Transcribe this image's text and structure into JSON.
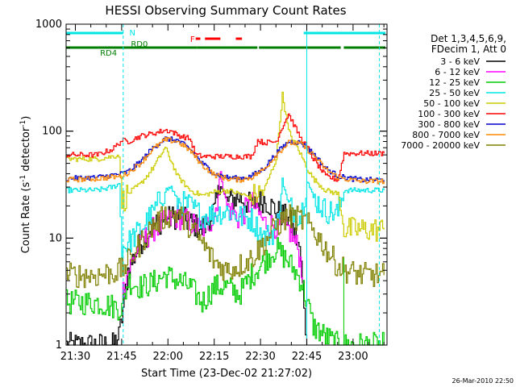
{
  "chart_data": {
    "type": "line",
    "title": "HESSI Observing Summary Count Rates",
    "xlabel": "Start Time (23-Dec-02 21:27:02)",
    "ylabel_main": "Count Rate (s",
    "ylabel_sup1": "-1",
    "ylabel_mid": " detector",
    "ylabel_sup2": "-1",
    "ylabel_end": ")",
    "y_scale": "log",
    "ylim": [
      1,
      1000
    ],
    "xlim_minutes": [
      0,
      104
    ],
    "x_tick_labels": [
      "21:30",
      "21:45",
      "22:00",
      "22:15",
      "22:30",
      "22:45",
      "23:00"
    ],
    "x_tick_minutes": [
      3,
      18,
      33,
      48,
      63,
      78,
      93
    ],
    "y_tick_labels": [
      "1",
      "10",
      "100",
      "1000"
    ],
    "y_tick_values": [
      1,
      10,
      100,
      1000
    ],
    "legend_placement": "right",
    "legend_header_1": "Det 1,3,4,5,6,9,",
    "legend_header_2": "FDecim 1, Att 0",
    "timestamp": "26-Mar-2010 22:50",
    "flags": {
      "N": {
        "label": "N",
        "color": "#00e5e5",
        "segments": [
          [
            0,
            18.5
          ],
          [
            77,
            103.5
          ]
        ]
      },
      "F": {
        "label": "F",
        "color": "#ff0000",
        "segments": [
          [
            42,
            43.5
          ],
          [
            45,
            50
          ],
          [
            55,
            57
          ]
        ]
      },
      "RD0": {
        "label": "RD0",
        "color": "#007f00",
        "segments": [
          [
            18.5,
            42.5
          ]
        ]
      },
      "RD4": {
        "label": "RD4",
        "color": "#007f00",
        "segments": [
          [
            0,
            18.5
          ],
          [
            42.5,
            62
          ],
          [
            62.5,
            89
          ],
          [
            90,
            103.5
          ]
        ]
      }
    },
    "vlines_dashed": [
      18.5,
      101.5
    ],
    "vlines_solid": [
      78,
      90
    ],
    "series": [
      {
        "name": "3 - 6 keV",
        "color": "#000000",
        "x": [
          0,
          15,
          17,
          18,
          20,
          24,
          28,
          32,
          36,
          40,
          44,
          48,
          50,
          52,
          56,
          60,
          64,
          68,
          72,
          75,
          76,
          77,
          78
        ],
        "y": [
          1,
          1,
          1.2,
          1.8,
          5,
          9,
          13,
          15,
          16,
          14,
          12,
          18,
          32,
          22,
          24,
          20,
          23,
          18,
          15,
          9,
          6,
          2,
          1
        ]
      },
      {
        "name": "6 - 12 keV",
        "color": "#ff00ff",
        "x": [
          18,
          20,
          24,
          28,
          32,
          36,
          40,
          44,
          48,
          50,
          52,
          56,
          60,
          64,
          68,
          72,
          75,
          77
        ],
        "y": [
          3,
          5,
          9,
          12,
          14,
          16,
          14,
          12,
          16,
          40,
          20,
          15,
          22,
          14,
          13,
          12,
          8,
          4
        ]
      },
      {
        "name": "12 - 25 keV",
        "color": "#00cc00",
        "x": [
          0,
          10,
          18,
          20,
          24,
          28,
          32,
          36,
          40,
          44,
          48,
          52,
          56,
          60,
          64,
          68,
          72,
          76,
          78,
          80,
          84,
          88,
          92,
          96,
          100,
          103
        ],
        "y": [
          2.5,
          2.5,
          2.2,
          4,
          3.5,
          3.8,
          4.5,
          4,
          3.5,
          2.5,
          3.5,
          3.5,
          3,
          4.5,
          6,
          8,
          6,
          4,
          2.5,
          1.5,
          1.2,
          1,
          1,
          1,
          1,
          1
        ]
      },
      {
        "name": "25 - 50 keV",
        "color": "#00e5e5",
        "x": [
          0,
          10,
          15,
          17,
          18,
          20,
          24,
          28,
          32,
          34,
          36,
          40,
          44,
          48,
          52,
          56,
          60,
          64,
          68,
          70,
          72,
          76,
          78,
          80,
          84,
          88,
          90,
          95,
          103
        ],
        "y": [
          28,
          28,
          30,
          32,
          8,
          9,
          12,
          17,
          28,
          30,
          22,
          20,
          16,
          17,
          18,
          16,
          15,
          10,
          12,
          35,
          20,
          16,
          35,
          24,
          18,
          17,
          28,
          28,
          28
        ]
      },
      {
        "name": "50 - 100 keV",
        "color": "#cccc00",
        "x": [
          0,
          10,
          15,
          17,
          18,
          20,
          24,
          28,
          32,
          34,
          36,
          40,
          44,
          48,
          52,
          56,
          60,
          64,
          68,
          70,
          72,
          76,
          78,
          80,
          84,
          88,
          90,
          95,
          103
        ],
        "y": [
          55,
          55,
          58,
          60,
          22,
          26,
          32,
          45,
          70,
          52,
          38,
          28,
          25,
          27,
          28,
          26,
          24,
          28,
          55,
          220,
          100,
          60,
          45,
          36,
          28,
          26,
          12,
          12,
          12
        ]
      },
      {
        "name": "100 - 300 keV",
        "color": "#ff0000",
        "x": [
          0,
          10,
          15,
          18,
          20,
          24,
          28,
          32,
          34,
          36,
          40,
          42,
          44,
          48,
          52,
          56,
          60,
          62,
          64,
          68,
          70,
          72,
          74,
          76,
          78,
          80,
          84,
          88,
          90,
          95,
          103
        ],
        "y": [
          60,
          60,
          68,
          82,
          80,
          90,
          95,
          102,
          100,
          92,
          85,
          60,
          58,
          58,
          58,
          58,
          58,
          82,
          78,
          80,
          110,
          145,
          110,
          85,
          72,
          55,
          38,
          35,
          62,
          62,
          62
        ]
      },
      {
        "name": "300 - 800 keV",
        "color": "#0000cc",
        "x": [
          0,
          10,
          18,
          20,
          24,
          28,
          32,
          36,
          40,
          44,
          48,
          52,
          56,
          60,
          64,
          68,
          72,
          76,
          80,
          84,
          88,
          92,
          96,
          103
        ],
        "y": [
          36,
          37,
          40,
          42,
          52,
          70,
          85,
          82,
          68,
          50,
          40,
          37,
          36,
          38,
          45,
          62,
          80,
          78,
          62,
          45,
          38,
          36,
          35,
          35
        ]
      },
      {
        "name": "800 - 7000 keV",
        "color": "#ff8800",
        "x": [
          0,
          10,
          18,
          20,
          24,
          28,
          32,
          36,
          40,
          44,
          48,
          52,
          56,
          60,
          64,
          68,
          72,
          76,
          80,
          84,
          88,
          92,
          96,
          103
        ],
        "y": [
          35,
          36,
          38,
          41,
          50,
          68,
          83,
          80,
          66,
          48,
          39,
          36,
          35,
          37,
          44,
          60,
          78,
          76,
          60,
          44,
          37,
          35,
          34,
          34
        ]
      },
      {
        "name": "7000 - 20000 keV",
        "color": "#808000",
        "x": [
          0,
          5,
          10,
          15,
          18,
          20,
          24,
          28,
          32,
          36,
          40,
          44,
          48,
          52,
          56,
          60,
          64,
          68,
          72,
          76,
          80,
          84,
          88,
          92,
          96,
          100,
          103
        ],
        "y": [
          4.5,
          4.5,
          4.5,
          4.8,
          5,
          6,
          9,
          13,
          16,
          17,
          13,
          9,
          6,
          5,
          5.5,
          6.5,
          9,
          13,
          16,
          15,
          12,
          8,
          5.5,
          4.8,
          4.5,
          4.5,
          4.5
        ]
      }
    ]
  }
}
